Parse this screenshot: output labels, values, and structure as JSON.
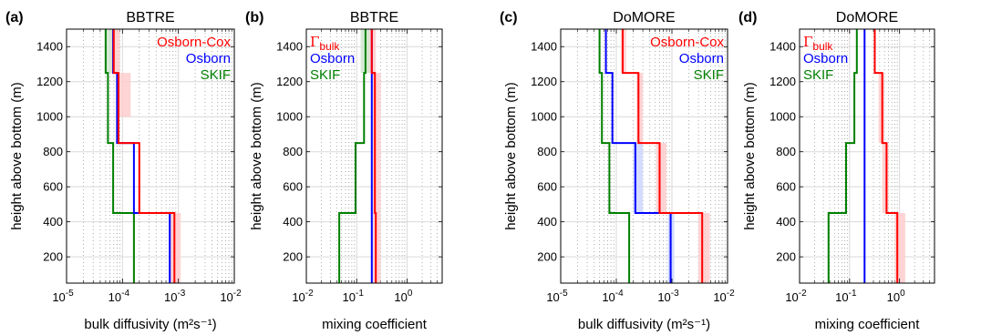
{
  "colors": {
    "osborn_cox": "#ff0000",
    "osborn": "#0000ff",
    "skif": "#008000",
    "band_red": "#ffcccc",
    "band_blue": "#ccd6ff",
    "band_green": "#cfe6cf",
    "grid": "#d9d9d9",
    "minor_grid": "#9a9a9a"
  },
  "chart_data": [
    {
      "type": "line",
      "panel_letter": "(a)",
      "title": "BBTRE",
      "xlabel": "bulk diffusivity (m²s⁻¹)",
      "ylabel": "height above bottom (m)",
      "xscale": "log",
      "xlim": [
        1e-05,
        0.01
      ],
      "ylim": [
        50,
        1500
      ],
      "xticks": [
        1e-05,
        0.0001,
        0.001,
        0.01
      ],
      "xtick_labels": [
        "10-5",
        "10-4",
        "10-3",
        "10-2"
      ],
      "yticks": [
        200,
        400,
        600,
        800,
        1000,
        1200,
        1400
      ],
      "grid": true,
      "legend": [
        "Osborn-Cox",
        "Osborn",
        "SKIF"
      ],
      "legend_position": "top-right",
      "series": [
        {
          "name": "Osborn-Cox",
          "steps": [
            {
              "y0": 50,
              "y1": 450,
              "x": 0.00085
            },
            {
              "y0": 450,
              "y1": 850,
              "x": 0.0002
            },
            {
              "y0": 850,
              "y1": 1250,
              "x": 8.5e-05
            },
            {
              "y0": 1250,
              "y1": 1500,
              "x": 7e-05
            }
          ],
          "band": [
            {
              "y0": 50,
              "y1": 450,
              "lo": 0.0007,
              "hi": 0.0011
            },
            {
              "y0": 1000,
              "y1": 1250,
              "lo": 8e-05,
              "hi": 0.00014
            },
            {
              "y0": 1250,
              "y1": 1500,
              "lo": 6e-05,
              "hi": 9e-05
            }
          ]
        },
        {
          "name": "Osborn",
          "steps": [
            {
              "y0": 50,
              "y1": 450,
              "x": 0.0007
            },
            {
              "y0": 450,
              "y1": 850,
              "x": 0.00016
            },
            {
              "y0": 850,
              "y1": 1250,
              "x": 8e-05
            },
            {
              "y0": 1250,
              "y1": 1500,
              "x": 6.8e-05
            }
          ],
          "band": []
        },
        {
          "name": "SKIF",
          "steps": [
            {
              "y0": 50,
              "y1": 450,
              "x": 0.00016
            },
            {
              "y0": 450,
              "y1": 850,
              "x": 6.8e-05
            },
            {
              "y0": 850,
              "y1": 1250,
              "x": 5.5e-05
            },
            {
              "y0": 1250,
              "y1": 1500,
              "x": 5e-05
            }
          ],
          "band": [
            {
              "y0": 1250,
              "y1": 1500,
              "lo": 4.8e-05,
              "hi": 6.8e-05
            }
          ]
        }
      ]
    },
    {
      "type": "line",
      "panel_letter": "(b)",
      "title": "BBTRE",
      "xlabel": "mixing coefficient",
      "ylabel": "height above bottom (m)",
      "xscale": "log",
      "xlim": [
        0.01,
        5
      ],
      "ylim": [
        50,
        1500
      ],
      "xticks": [
        0.01,
        0.1,
        1
      ],
      "xtick_labels": [
        "10-2",
        "10-1",
        "100"
      ],
      "yticks": [
        200,
        400,
        600,
        800,
        1000,
        1200,
        1400
      ],
      "grid": true,
      "legend": [
        "Γbulk",
        "Osborn",
        "SKIF"
      ],
      "legend_position": "top-left",
      "series": [
        {
          "name": "Γbulk",
          "steps": [
            {
              "y0": 50,
              "y1": 450,
              "x": 0.24
            },
            {
              "y0": 450,
              "y1": 1250,
              "x": 0.23
            },
            {
              "y0": 1250,
              "y1": 1500,
              "x": 0.2
            }
          ],
          "band": [
            {
              "y0": 50,
              "y1": 1250,
              "lo": 0.21,
              "hi": 0.3
            },
            {
              "y0": 1250,
              "y1": 1500,
              "lo": 0.16,
              "hi": 0.24
            }
          ]
        },
        {
          "name": "Osborn",
          "steps": [
            {
              "y0": 50,
              "y1": 1500,
              "x": 0.2
            }
          ],
          "band": []
        },
        {
          "name": "SKIF",
          "steps": [
            {
              "y0": 50,
              "y1": 450,
              "x": 0.045
            },
            {
              "y0": 450,
              "y1": 850,
              "x": 0.095
            },
            {
              "y0": 850,
              "y1": 1250,
              "x": 0.14
            },
            {
              "y0": 1250,
              "y1": 1500,
              "x": 0.15
            }
          ],
          "band": [
            {
              "y0": 1250,
              "y1": 1500,
              "lo": 0.12,
              "hi": 0.18
            }
          ]
        }
      ]
    },
    {
      "type": "line",
      "panel_letter": "(c)",
      "title": "DoMORE",
      "xlabel": "bulk diffusivity (m²s⁻¹)",
      "ylabel": "height above bottom (m)",
      "xscale": "log",
      "xlim": [
        1e-05,
        0.01
      ],
      "ylim": [
        50,
        1500
      ],
      "xticks": [
        1e-05,
        0.0001,
        0.001,
        0.01
      ],
      "xtick_labels": [
        "10-5",
        "10-4",
        "10-3",
        "10-2"
      ],
      "yticks": [
        200,
        400,
        600,
        800,
        1000,
        1200,
        1400
      ],
      "grid": true,
      "legend": [
        "Osborn-Cox",
        "Osborn",
        "SKIF"
      ],
      "legend_position": "top-right",
      "series": [
        {
          "name": "Osborn-Cox",
          "steps": [
            {
              "y0": 50,
              "y1": 450,
              "x": 0.0035
            },
            {
              "y0": 450,
              "y1": 850,
              "x": 0.0006
            },
            {
              "y0": 850,
              "y1": 1250,
              "x": 0.00025
            },
            {
              "y0": 1250,
              "y1": 1500,
              "x": 0.00013
            }
          ],
          "band": [
            {
              "y0": 50,
              "y1": 450,
              "lo": 0.003,
              "hi": 0.0048
            },
            {
              "y0": 450,
              "y1": 850,
              "lo": 0.00052,
              "hi": 0.0008
            },
            {
              "y0": 850,
              "y1": 1250,
              "lo": 0.00023,
              "hi": 0.0003
            },
            {
              "y0": 1250,
              "y1": 1500,
              "lo": 0.00012,
              "hi": 0.00015
            }
          ]
        },
        {
          "name": "Osborn",
          "steps": [
            {
              "y0": 50,
              "y1": 450,
              "x": 0.00095
            },
            {
              "y0": 450,
              "y1": 850,
              "x": 0.00022
            },
            {
              "y0": 850,
              "y1": 1250,
              "x": 8.5e-05
            },
            {
              "y0": 1250,
              "y1": 1500,
              "x": 6.5e-05
            }
          ],
          "band": [
            {
              "y0": 50,
              "y1": 450,
              "lo": 0.00085,
              "hi": 0.0011
            },
            {
              "y0": 450,
              "y1": 850,
              "lo": 0.0002,
              "hi": 0.0003
            }
          ]
        },
        {
          "name": "SKIF",
          "steps": [
            {
              "y0": 50,
              "y1": 450,
              "x": 0.00017
            },
            {
              "y0": 450,
              "y1": 850,
              "x": 7.5e-05
            },
            {
              "y0": 850,
              "y1": 1250,
              "x": 5.5e-05
            },
            {
              "y0": 1250,
              "y1": 1500,
              "x": 5e-05
            }
          ],
          "band": []
        }
      ]
    },
    {
      "type": "line",
      "panel_letter": "(d)",
      "title": "DoMORE",
      "xlabel": "mixing coefficient",
      "ylabel": "height above bottom (m)",
      "xscale": "log",
      "xlim": [
        0.01,
        5
      ],
      "ylim": [
        50,
        1500
      ],
      "xticks": [
        0.01,
        0.1,
        1
      ],
      "xtick_labels": [
        "10-2",
        "10-1",
        "100"
      ],
      "yticks": [
        200,
        400,
        600,
        800,
        1000,
        1200,
        1400
      ],
      "grid": true,
      "legend": [
        "Γbulk",
        "Osborn",
        "SKIF"
      ],
      "legend_position": "top-left",
      "series": [
        {
          "name": "Γbulk",
          "steps": [
            {
              "y0": 50,
              "y1": 450,
              "x": 0.9
            },
            {
              "y0": 450,
              "y1": 850,
              "x": 0.55
            },
            {
              "y0": 850,
              "y1": 1250,
              "x": 0.45
            },
            {
              "y0": 1250,
              "y1": 1500,
              "x": 0.32
            }
          ],
          "band": [
            {
              "y0": 50,
              "y1": 450,
              "lo": 0.8,
              "hi": 1.3
            },
            {
              "y0": 450,
              "y1": 850,
              "lo": 0.45,
              "hi": 0.6
            },
            {
              "y0": 850,
              "y1": 1250,
              "lo": 0.38,
              "hi": 0.5
            }
          ]
        },
        {
          "name": "Osborn",
          "steps": [
            {
              "y0": 50,
              "y1": 1500,
              "x": 0.2
            }
          ],
          "band": []
        },
        {
          "name": "SKIF",
          "steps": [
            {
              "y0": 50,
              "y1": 450,
              "x": 0.038
            },
            {
              "y0": 450,
              "y1": 850,
              "x": 0.085
            },
            {
              "y0": 850,
              "y1": 1250,
              "x": 0.125
            },
            {
              "y0": 1250,
              "y1": 1500,
              "x": 0.14
            }
          ],
          "band": []
        }
      ]
    }
  ]
}
